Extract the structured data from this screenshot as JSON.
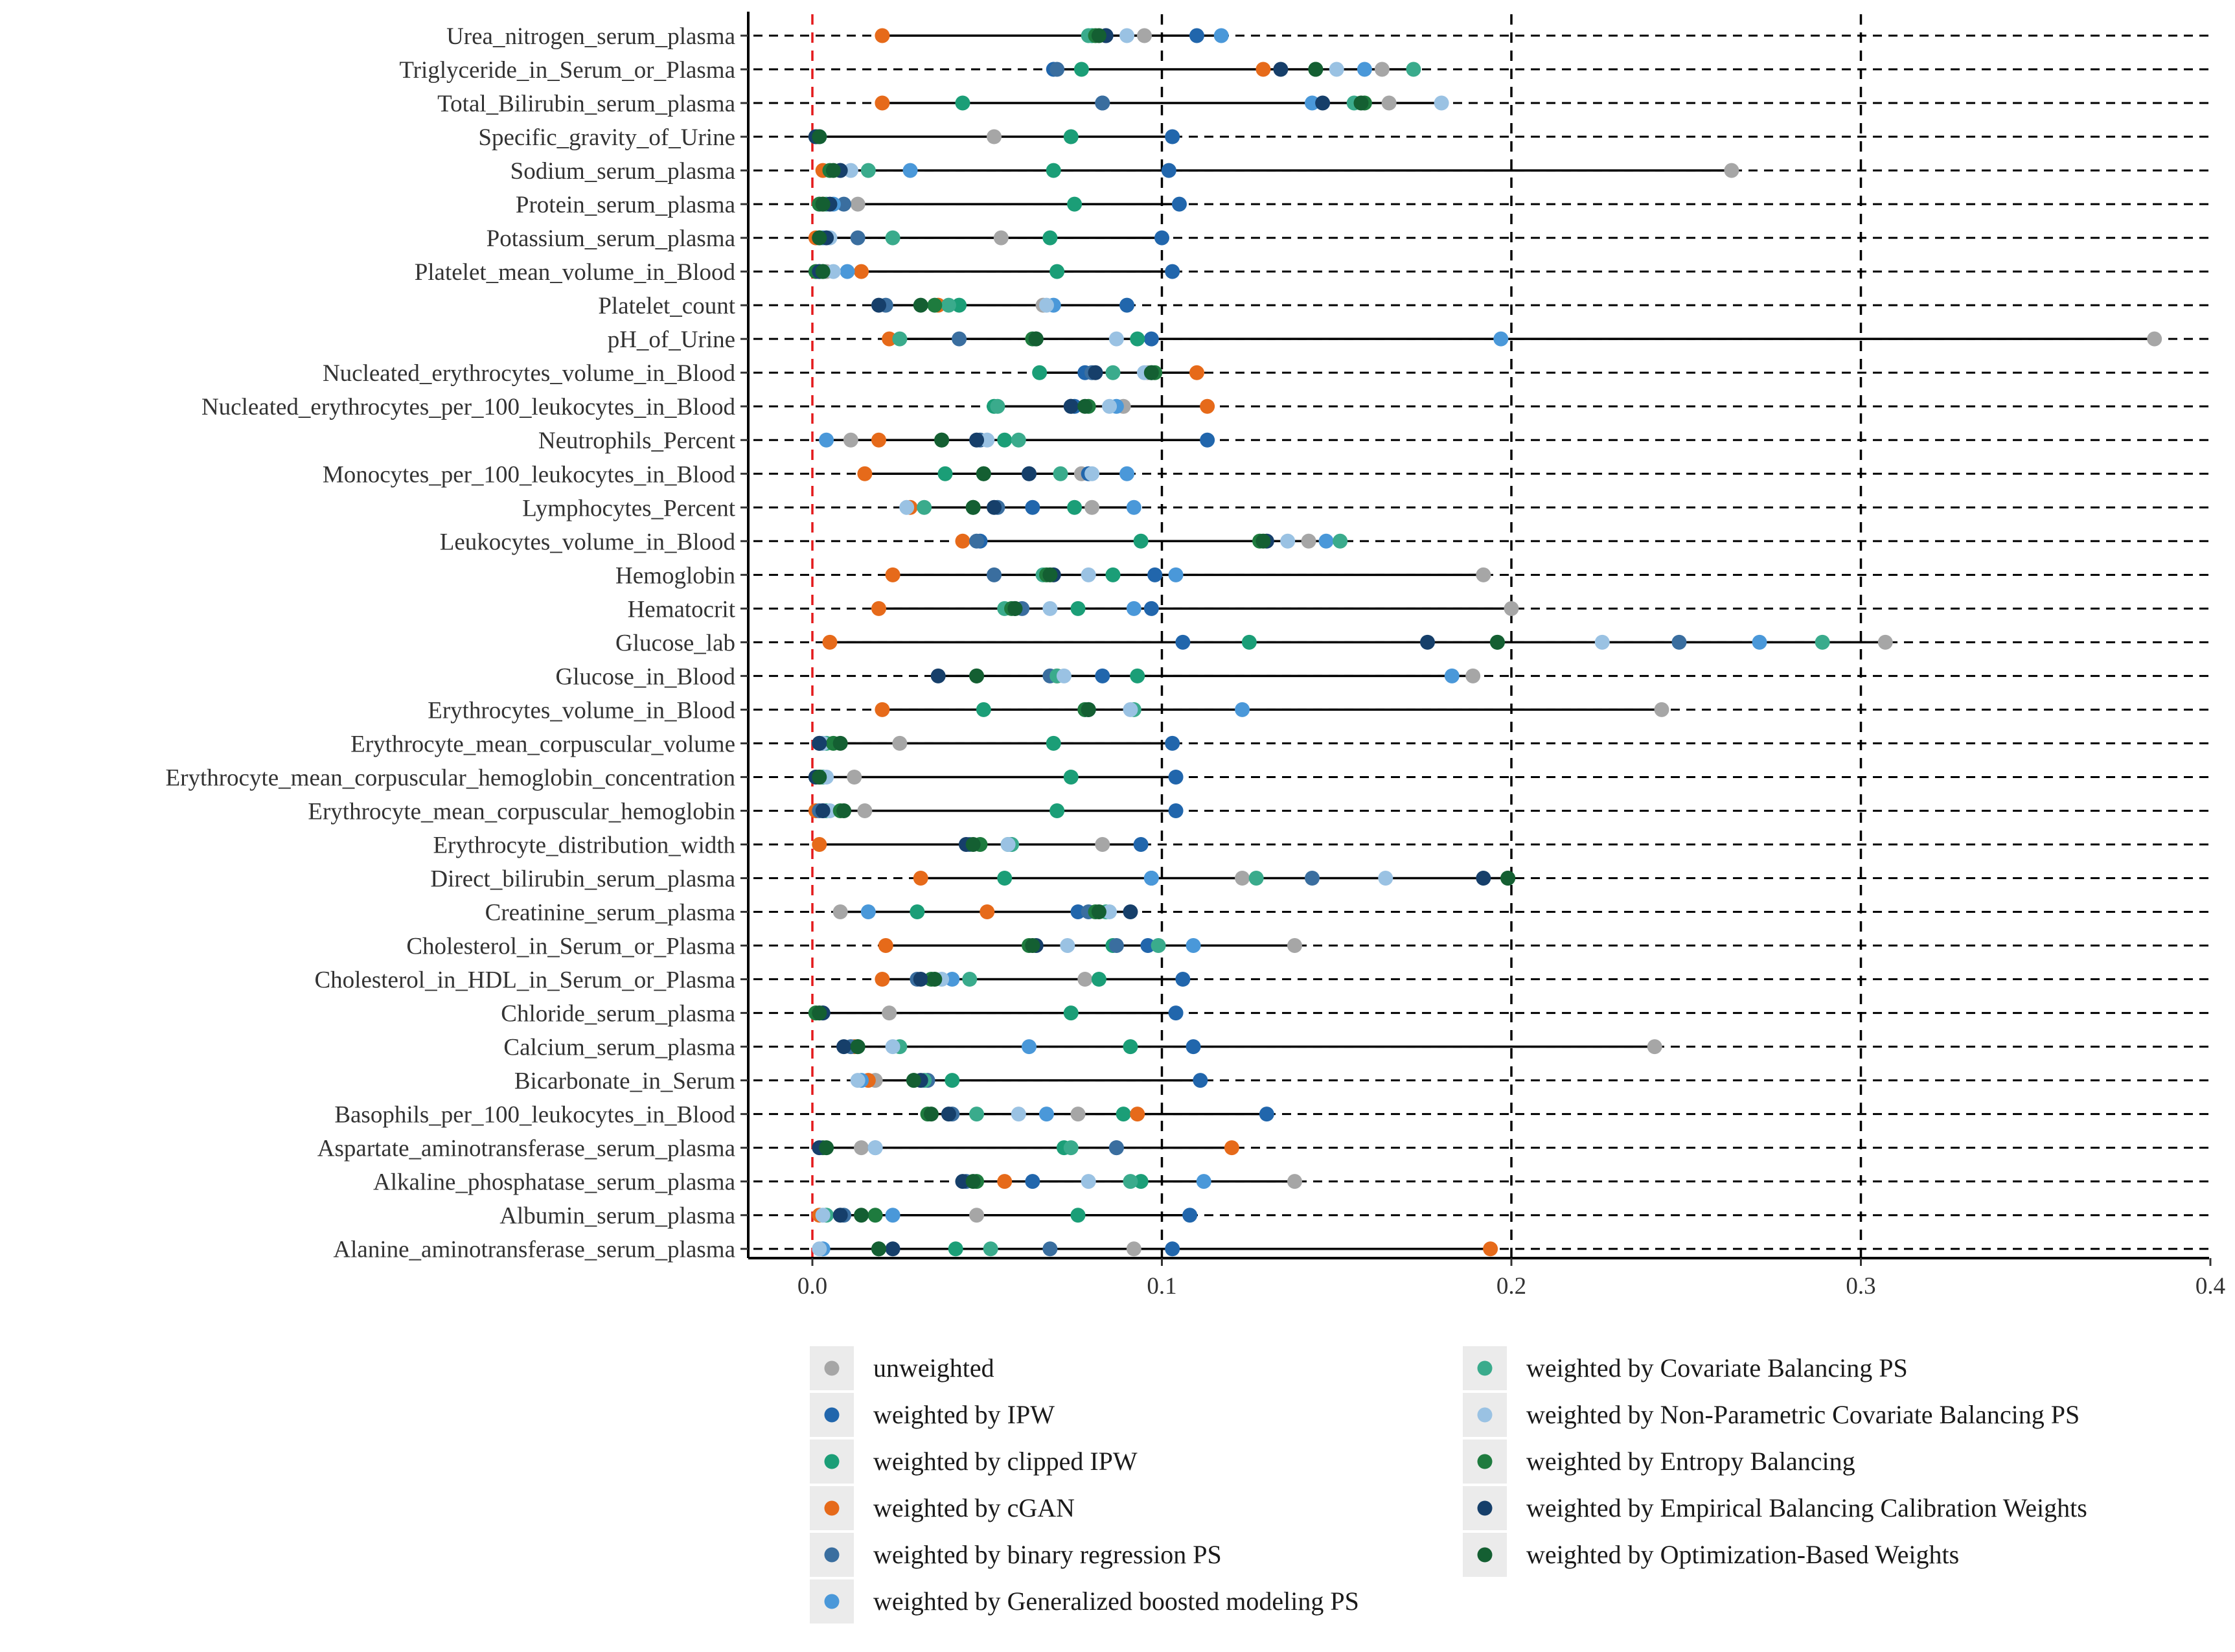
{
  "chart_data": {
    "type": "scatter",
    "title": "",
    "xlabel": "",
    "ylabel": "",
    "xlim": [
      -0.02,
      0.4
    ],
    "x_ticks": [
      0.0,
      0.1,
      0.2,
      0.3,
      0.4
    ],
    "x_tick_labels": [
      "0.0",
      "0.1",
      "0.2",
      "0.3",
      "0.4"
    ],
    "reference_line": {
      "x": 0.0,
      "style": "dashed",
      "color": "#e41a1c"
    },
    "threshold_lines": [
      0.1,
      0.2,
      0.3
    ],
    "legend_position": "bottom",
    "methods": [
      {
        "key": "unw",
        "label": "unweighted",
        "color": "#a6a6a6"
      },
      {
        "key": "ipw",
        "label": "weighted by IPW",
        "color": "#2166ac"
      },
      {
        "key": "cipw",
        "label": "weighted by clipped IPW",
        "color": "#1b9e77"
      },
      {
        "key": "cgan",
        "label": "weighted by cGAN",
        "color": "#e66a1a"
      },
      {
        "key": "brps",
        "label": "weighted by binary regression PS",
        "color": "#3a6e9f"
      },
      {
        "key": "gbm",
        "label": "weighted by Generalized boosted modeling PS",
        "color": "#4a98d9"
      },
      {
        "key": "cbps",
        "label": "weighted by Covariate Balancing PS",
        "color": "#3aab8c"
      },
      {
        "key": "npcbps",
        "label": "weighted by Non-Parametric Covariate Balancing PS",
        "color": "#9ac2e3"
      },
      {
        "key": "ebal",
        "label": "weighted by Entropy Balancing",
        "color": "#1e7b3e"
      },
      {
        "key": "ebcw",
        "label": "weighted by Empirical Balancing Calibration Weights",
        "color": "#163f6a"
      },
      {
        "key": "obw",
        "label": "weighted by Optimization-Based Weights",
        "color": "#145f32"
      }
    ],
    "categories": [
      "Urea_nitrogen_serum_plasma",
      "Triglyceride_in_Serum_or_Plasma",
      "Total_Bilirubin_serum_plasma",
      "Specific_gravity_of_Urine",
      "Sodium_serum_plasma",
      "Protein_serum_plasma",
      "Potassium_serum_plasma",
      "Platelet_mean_volume_in_Blood",
      "Platelet_count",
      "pH_of_Urine",
      "Nucleated_erythrocytes_volume_in_Blood",
      "Nucleated_erythrocytes_per_100_leukocytes_in_Blood",
      "Neutrophils_Percent",
      "Monocytes_per_100_leukocytes_in_Blood",
      "Lymphocytes_Percent",
      "Leukocytes_volume_in_Blood",
      "Hemoglobin",
      "Hematocrit",
      "Glucose_lab",
      "Glucose_in_Blood",
      "Erythrocytes_volume_in_Blood",
      "Erythrocyte_mean_corpuscular_volume",
      "Erythrocyte_mean_corpuscular_hemoglobin_concentration",
      "Erythrocyte_mean_corpuscular_hemoglobin",
      "Erythrocyte_distribution_width",
      "Direct_bilirubin_serum_plasma",
      "Creatinine_serum_plasma",
      "Cholesterol_in_Serum_or_Plasma",
      "Cholesterol_in_HDL_in_Serum_or_Plasma",
      "Chloride_serum_plasma",
      "Calcium_serum_plasma",
      "Bicarbonate_in_Serum",
      "Basophils_per_100_leukocytes_in_Blood",
      "Aspartate_aminotransferase_serum_plasma",
      "Alkaline_phosphatase_serum_plasma",
      "Albumin_serum_plasma",
      "Alanine_aminotransferase_serum_plasma"
    ],
    "series": [
      {
        "name": "unweighted",
        "values": [
          0.095,
          0.163,
          0.165,
          0.052,
          0.263,
          0.013,
          0.054,
          0.004,
          0.066,
          0.384,
          0.096,
          0.089,
          0.011,
          0.077,
          0.08,
          0.142,
          0.192,
          0.2,
          0.307,
          0.189,
          0.243,
          0.025,
          0.012,
          0.015,
          0.083,
          0.123,
          0.008,
          0.138,
          0.078,
          0.022,
          0.241,
          0.018,
          0.076,
          0.014,
          0.138,
          0.047,
          0.092
        ]
      },
      {
        "name": "weighted by IPW",
        "values": [
          0.11,
          0.069,
          0.083,
          0.103,
          0.102,
          0.105,
          0.1,
          0.103,
          0.09,
          0.097,
          0.078,
          0.075,
          0.113,
          0.079,
          0.063,
          0.048,
          0.098,
          0.097,
          0.106,
          0.083,
          0.079,
          0.103,
          0.104,
          0.104,
          0.094,
          0.097,
          0.076,
          0.096,
          0.106,
          0.104,
          0.109,
          0.111,
          0.13,
          0.087,
          0.063,
          0.108,
          0.103
        ]
      },
      {
        "name": "weighted by clipped IPW",
        "values": [
          0.08,
          0.077,
          0.043,
          0.074,
          0.069,
          0.075,
          0.068,
          0.07,
          0.042,
          0.093,
          0.065,
          0.052,
          0.055,
          0.038,
          0.075,
          0.094,
          0.086,
          0.076,
          0.125,
          0.093,
          0.049,
          0.069,
          0.074,
          0.07,
          0.056,
          0.055,
          0.03,
          0.086,
          0.082,
          0.074,
          0.091,
          0.04,
          0.089,
          0.072,
          0.094,
          0.076,
          0.041
        ]
      },
      {
        "name": "weighted by cGAN",
        "values": [
          0.02,
          0.129,
          0.02,
          0.001,
          0.003,
          0.003,
          0.001,
          0.014,
          0.036,
          0.022,
          0.11,
          0.113,
          0.019,
          0.015,
          0.028,
          0.043,
          0.023,
          0.019,
          0.005,
          0.07,
          0.02,
          0.002,
          0.002,
          0.001,
          0.002,
          0.031,
          0.05,
          0.021,
          0.02,
          0.001,
          0.012,
          0.016,
          0.093,
          0.12,
          0.055,
          0.002,
          0.194
        ]
      },
      {
        "name": "weighted by binary regression PS",
        "values": [
          0.084,
          0.07,
          0.083,
          0.001,
          0.008,
          0.009,
          0.013,
          0.002,
          0.021,
          0.042,
          0.08,
          0.074,
          0.048,
          0.062,
          0.053,
          0.047,
          0.052,
          0.06,
          0.248,
          0.068,
          0.078,
          0.003,
          0.003,
          0.002,
          0.045,
          0.143,
          0.079,
          0.087,
          0.03,
          0.003,
          0.011,
          0.033,
          0.04,
          0.087,
          0.044,
          0.009,
          0.068
        ]
      },
      {
        "name": "weighted by Generalized boosted modeling PS",
        "values": [
          0.117,
          0.158,
          0.143,
          0.002,
          0.028,
          0.006,
          0.003,
          0.01,
          0.069,
          0.197,
          0.097,
          0.087,
          0.004,
          0.09,
          0.092,
          0.147,
          0.104,
          0.092,
          0.271,
          0.183,
          0.123,
          0.002,
          0.002,
          0.003,
          0.057,
          0.097,
          0.016,
          0.109,
          0.04,
          0.002,
          0.062,
          0.014,
          0.067,
          0.018,
          0.112,
          0.023,
          0.003
        ]
      },
      {
        "name": "weighted by Covariate Balancing PS",
        "values": [
          0.079,
          0.172,
          0.155,
          0.002,
          0.016,
          0.004,
          0.023,
          0.003,
          0.039,
          0.025,
          0.086,
          0.053,
          0.059,
          0.071,
          0.032,
          0.151,
          0.066,
          0.055,
          0.289,
          0.07,
          0.092,
          0.004,
          0.003,
          0.004,
          0.057,
          0.127,
          0.084,
          0.099,
          0.045,
          0.001,
          0.025,
          0.032,
          0.047,
          0.074,
          0.091,
          0.004,
          0.051
        ]
      },
      {
        "name": "weighted by Non-Parametric Covariate Balancing PS",
        "values": [
          0.09,
          0.15,
          0.18,
          0.001,
          0.011,
          0.002,
          0.005,
          0.006,
          0.067,
          0.087,
          0.095,
          0.085,
          0.05,
          0.08,
          0.027,
          0.136,
          0.079,
          0.068,
          0.226,
          0.072,
          0.091,
          0.003,
          0.004,
          0.005,
          0.056,
          0.164,
          0.085,
          0.073,
          0.037,
          0.002,
          0.023,
          0.013,
          0.059,
          0.018,
          0.079,
          0.003,
          0.002
        ]
      },
      {
        "name": "weighted by Entropy Balancing",
        "values": [
          0.081,
          0.144,
          0.158,
          0.001,
          0.005,
          0.002,
          0.002,
          0.001,
          0.035,
          0.063,
          0.098,
          0.079,
          0.037,
          0.049,
          0.046,
          0.128,
          0.067,
          0.057,
          0.196,
          0.047,
          0.078,
          0.006,
          0.001,
          0.008,
          0.048,
          0.199,
          0.081,
          0.062,
          0.034,
          0.001,
          0.013,
          0.029,
          0.033,
          0.003,
          0.047,
          0.018,
          0.019
        ]
      },
      {
        "name": "weighted by Empirical Balancing Calibration Weights",
        "values": [
          0.084,
          0.134,
          0.146,
          0.001,
          0.008,
          0.005,
          0.004,
          0.002,
          0.019,
          0.064,
          0.081,
          0.074,
          0.047,
          0.062,
          0.052,
          0.13,
          0.069,
          0.058,
          0.176,
          0.036,
          0.079,
          0.002,
          0.001,
          0.003,
          0.044,
          0.192,
          0.091,
          0.064,
          0.031,
          0.003,
          0.009,
          0.031,
          0.039,
          0.002,
          0.043,
          0.008,
          0.023
        ]
      },
      {
        "name": "weighted by Optimization-Based Weights",
        "values": [
          0.082,
          0.144,
          0.157,
          0.002,
          0.006,
          0.003,
          0.002,
          0.003,
          0.031,
          0.064,
          0.097,
          0.078,
          0.037,
          0.049,
          0.046,
          0.129,
          0.068,
          0.058,
          0.196,
          0.047,
          0.079,
          0.008,
          0.002,
          0.009,
          0.046,
          0.199,
          0.082,
          0.063,
          0.035,
          0.002,
          0.013,
          0.029,
          0.034,
          0.004,
          0.046,
          0.014,
          0.019
        ]
      }
    ]
  }
}
